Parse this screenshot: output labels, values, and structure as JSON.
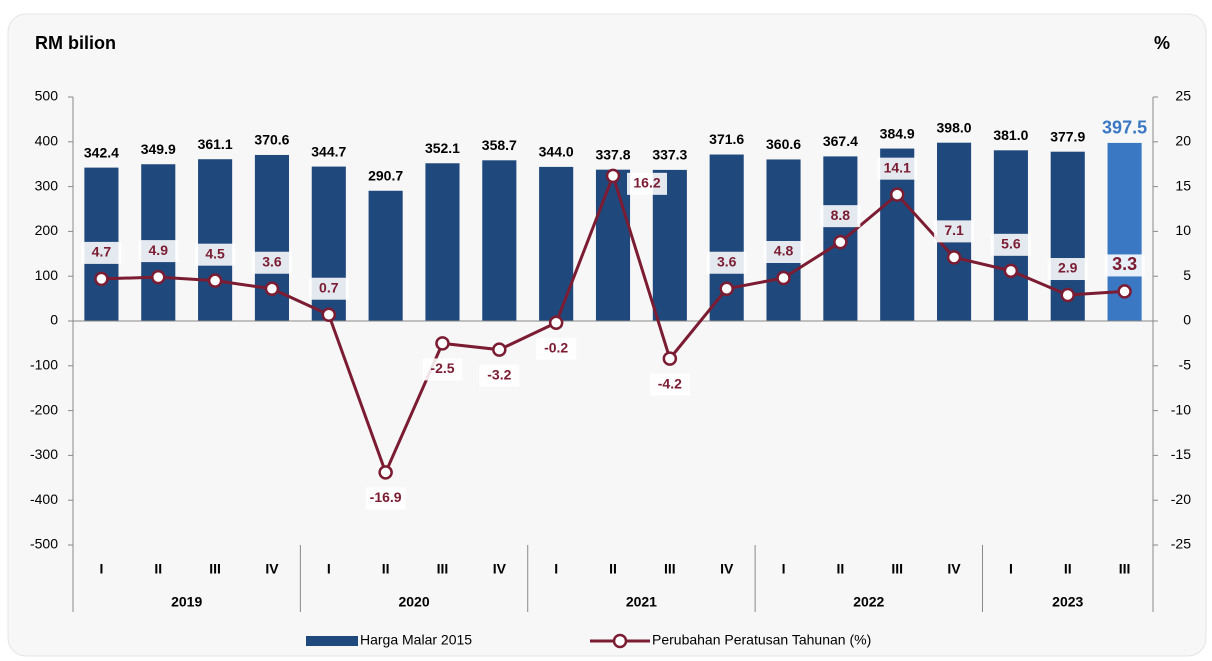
{
  "chart_data": {
    "type": "bar_line",
    "y_axis_title": "RM bilion",
    "y2_axis_title": "%",
    "groups": [
      {
        "name": "2019",
        "categories": [
          "I",
          "II",
          "III",
          "IV"
        ]
      },
      {
        "name": "2020",
        "categories": [
          "I",
          "II",
          "III",
          "IV"
        ]
      },
      {
        "name": "2021",
        "categories": [
          "I",
          "II",
          "III",
          "IV"
        ]
      },
      {
        "name": "2022",
        "categories": [
          "I",
          "II",
          "III",
          "IV"
        ]
      },
      {
        "name": "2023",
        "categories": [
          "I",
          "II",
          "III"
        ]
      }
    ],
    "series": [
      {
        "name": "Harga Malar 2015",
        "type": "bar",
        "color": "#1f497d",
        "colors": [
          "#1f497d",
          "#1f497d",
          "#1f497d",
          "#1f497d",
          "#1f497d",
          "#1f497d",
          "#1f497d",
          "#1f497d",
          "#1f497d",
          "#1f497d",
          "#1f497d",
          "#1f497d",
          "#1f497d",
          "#1f497d",
          "#1f497d",
          "#1f497d",
          "#1f497d",
          "#1f497d",
          "#3a78c4"
        ],
        "values": [
          342.4,
          349.9,
          361.1,
          370.6,
          344.7,
          290.7,
          352.1,
          358.7,
          344.0,
          337.8,
          337.3,
          371.6,
          360.6,
          367.4,
          384.9,
          398.0,
          381.0,
          377.9,
          397.5
        ],
        "value_labels": [
          "342.4",
          "349.9",
          "361.1",
          "370.6",
          "344.7",
          "290.7",
          "352.1",
          "358.7",
          "344.0",
          "337.8",
          "337.3",
          "371.6",
          "360.6",
          "367.4",
          "384.9",
          "398.0",
          "381.0",
          "377.9",
          "397.5"
        ]
      },
      {
        "name": "Perubahan Peratusan Tahunan (%)",
        "type": "line",
        "axis": "y2",
        "color": "#7b1c32",
        "values": [
          4.7,
          4.9,
          4.5,
          3.6,
          0.7,
          -16.9,
          -2.5,
          -3.2,
          -0.2,
          16.2,
          -4.2,
          3.6,
          4.8,
          8.8,
          14.1,
          7.1,
          5.6,
          2.9,
          3.3
        ]
      }
    ],
    "ylim": [
      -500,
      500
    ],
    "yticks": [
      -500,
      -400,
      -300,
      -200,
      -100,
      0,
      100,
      200,
      300,
      400,
      500
    ],
    "y2lim": [
      -25,
      25
    ],
    "y2ticks": [
      -25,
      -20,
      -15,
      -10,
      -5,
      0,
      5,
      10,
      15,
      20,
      25
    ]
  }
}
